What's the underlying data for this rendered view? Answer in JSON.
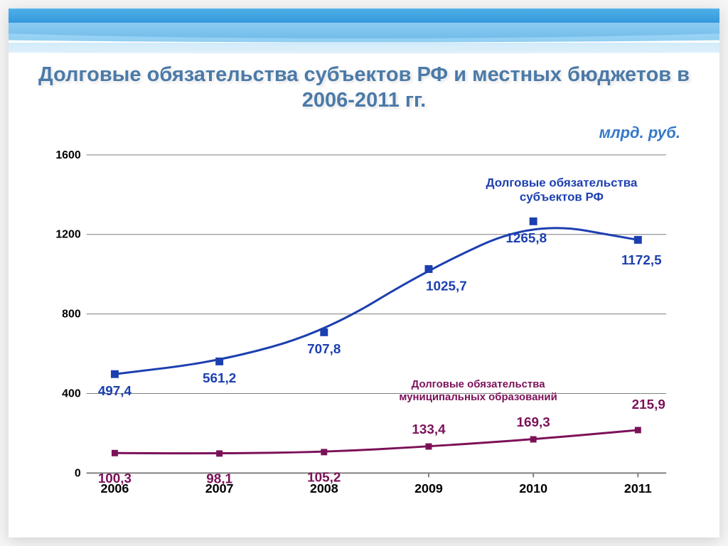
{
  "title_line": "Долговые обязательства субъектов РФ и местных бюджетов в 2006-2011 гг.",
  "unit_label": "млрд. руб.",
  "chart": {
    "type": "line",
    "background_color": "#ffffff",
    "grid_color": "#7f7f7f",
    "axis_color": "#808080",
    "xlim": [
      2006,
      2011
    ],
    "categories": [
      "2006",
      "2007",
      "2008",
      "2009",
      "2010",
      "2011"
    ],
    "ylim": [
      0,
      1600
    ],
    "ytick_step": 400,
    "yticks": [
      0,
      400,
      800,
      1200,
      1600
    ],
    "label_font": "Arial",
    "label_fontsize": 16,
    "series": [
      {
        "name": "Долговые обязательства субъектов РФ",
        "values": [
          497.4,
          561.2,
          707.8,
          1025.7,
          1265.8,
          1172.5
        ],
        "labels": [
          "497,4",
          "561,2",
          "707,8",
          "1025,7",
          "1265,8",
          "1172,5"
        ],
        "color": "#1c3fb0",
        "marker": "square",
        "marker_size": 11,
        "line_width": 3,
        "legend_label_lines": [
          "Долговые обязательства",
          "субъектов РФ"
        ],
        "data_label_fontsize": 19
      },
      {
        "name": "Долговые обязательства муниципальных образований",
        "values": [
          100.3,
          98.1,
          105.2,
          133.4,
          169.3,
          215.9
        ],
        "labels": [
          "100,3",
          "98,1",
          "105,2",
          "133,4",
          "169,3",
          "215,9"
        ],
        "color": "#7c1158",
        "marker": "square",
        "marker_size": 9,
        "line_width": 3,
        "legend_label_lines": [
          "Долговые обязательства",
          "муниципальных образований"
        ],
        "data_label_fontsize": 19
      }
    ]
  },
  "decoration": {
    "wave_colors": [
      "#4fb0e8",
      "#2a8fd6",
      "#0d5fa5",
      "#9bd4f5",
      "#cde9f9"
    ]
  }
}
